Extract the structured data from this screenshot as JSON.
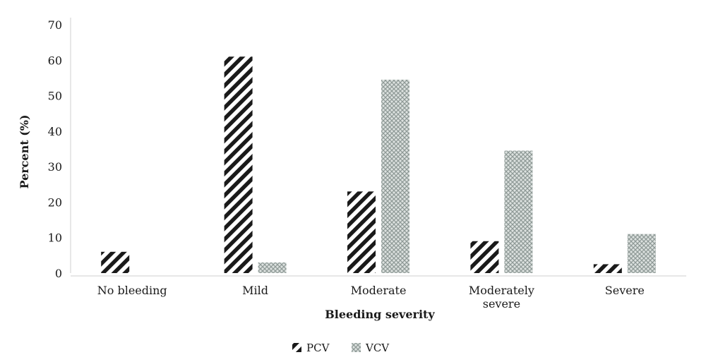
{
  "chart_data": {
    "type": "bar",
    "categories": [
      [
        "No bleeding"
      ],
      [
        "Mild"
      ],
      [
        "Moderate"
      ],
      [
        "Moderately",
        "severe"
      ],
      [
        "Severe"
      ]
    ],
    "series": [
      {
        "name": "PCV",
        "values": [
          6,
          61,
          23,
          9,
          2.5
        ],
        "pattern": "diagonal-hatch",
        "color": "#1a1a1a"
      },
      {
        "name": "VCV",
        "values": [
          0,
          3,
          54.5,
          34.5,
          11
        ],
        "pattern": "crosshatch",
        "color": "#9aa5a2"
      }
    ],
    "xlabel": "Bleeding severity",
    "ylabel": "Percent (%)",
    "ylim": [
      0,
      70
    ],
    "yticks": [
      0,
      10,
      20,
      30,
      40,
      50,
      60,
      70
    ],
    "grid": false,
    "legend_position": "bottom"
  }
}
